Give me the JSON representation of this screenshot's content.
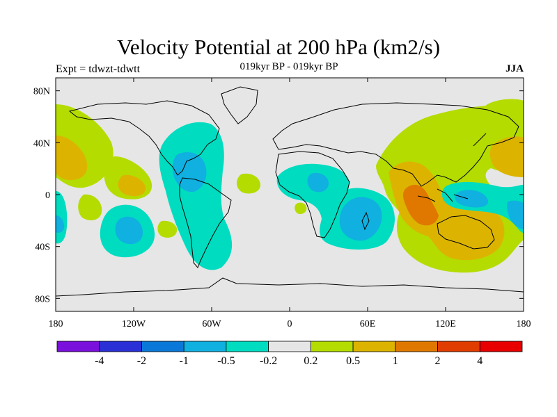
{
  "header": {
    "title": "Velocity Potential at 200 hPa (km2/s)",
    "subtitle": "019kyr BP - 019kyr BP",
    "left_label": "Expt = tdwzt-tdwtt",
    "right_label": "JJA"
  },
  "map": {
    "projection": "cylindrical-equidistant",
    "lon_range": [
      -180,
      180
    ],
    "lat_range": [
      -90,
      90
    ],
    "lon_ticks": [
      {
        "value": -180,
        "label": "180"
      },
      {
        "value": -120,
        "label": "120W"
      },
      {
        "value": -60,
        "label": "60W"
      },
      {
        "value": 0,
        "label": "0"
      },
      {
        "value": 60,
        "label": "60E"
      },
      {
        "value": 120,
        "label": "120E"
      },
      {
        "value": 180,
        "label": "180"
      }
    ],
    "lat_ticks": [
      {
        "value": 80,
        "label": "80N"
      },
      {
        "value": 40,
        "label": "40N"
      },
      {
        "value": 0,
        "label": "0"
      },
      {
        "value": -40,
        "label": "40S"
      },
      {
        "value": -80,
        "label": "80S"
      }
    ]
  },
  "colorbar": {
    "colors": [
      "#7a10dc",
      "#2a30d6",
      "#0a78d8",
      "#10b0e0",
      "#00dcc0",
      "#e6e6e6",
      "#b4dc00",
      "#dcb400",
      "#e07800",
      "#e03c00",
      "#e80000"
    ],
    "labels": [
      "-4",
      "-2",
      "-1",
      "-0.5",
      "-0.2",
      "0.2",
      "0.5",
      "1",
      "2",
      "4"
    ]
  }
}
